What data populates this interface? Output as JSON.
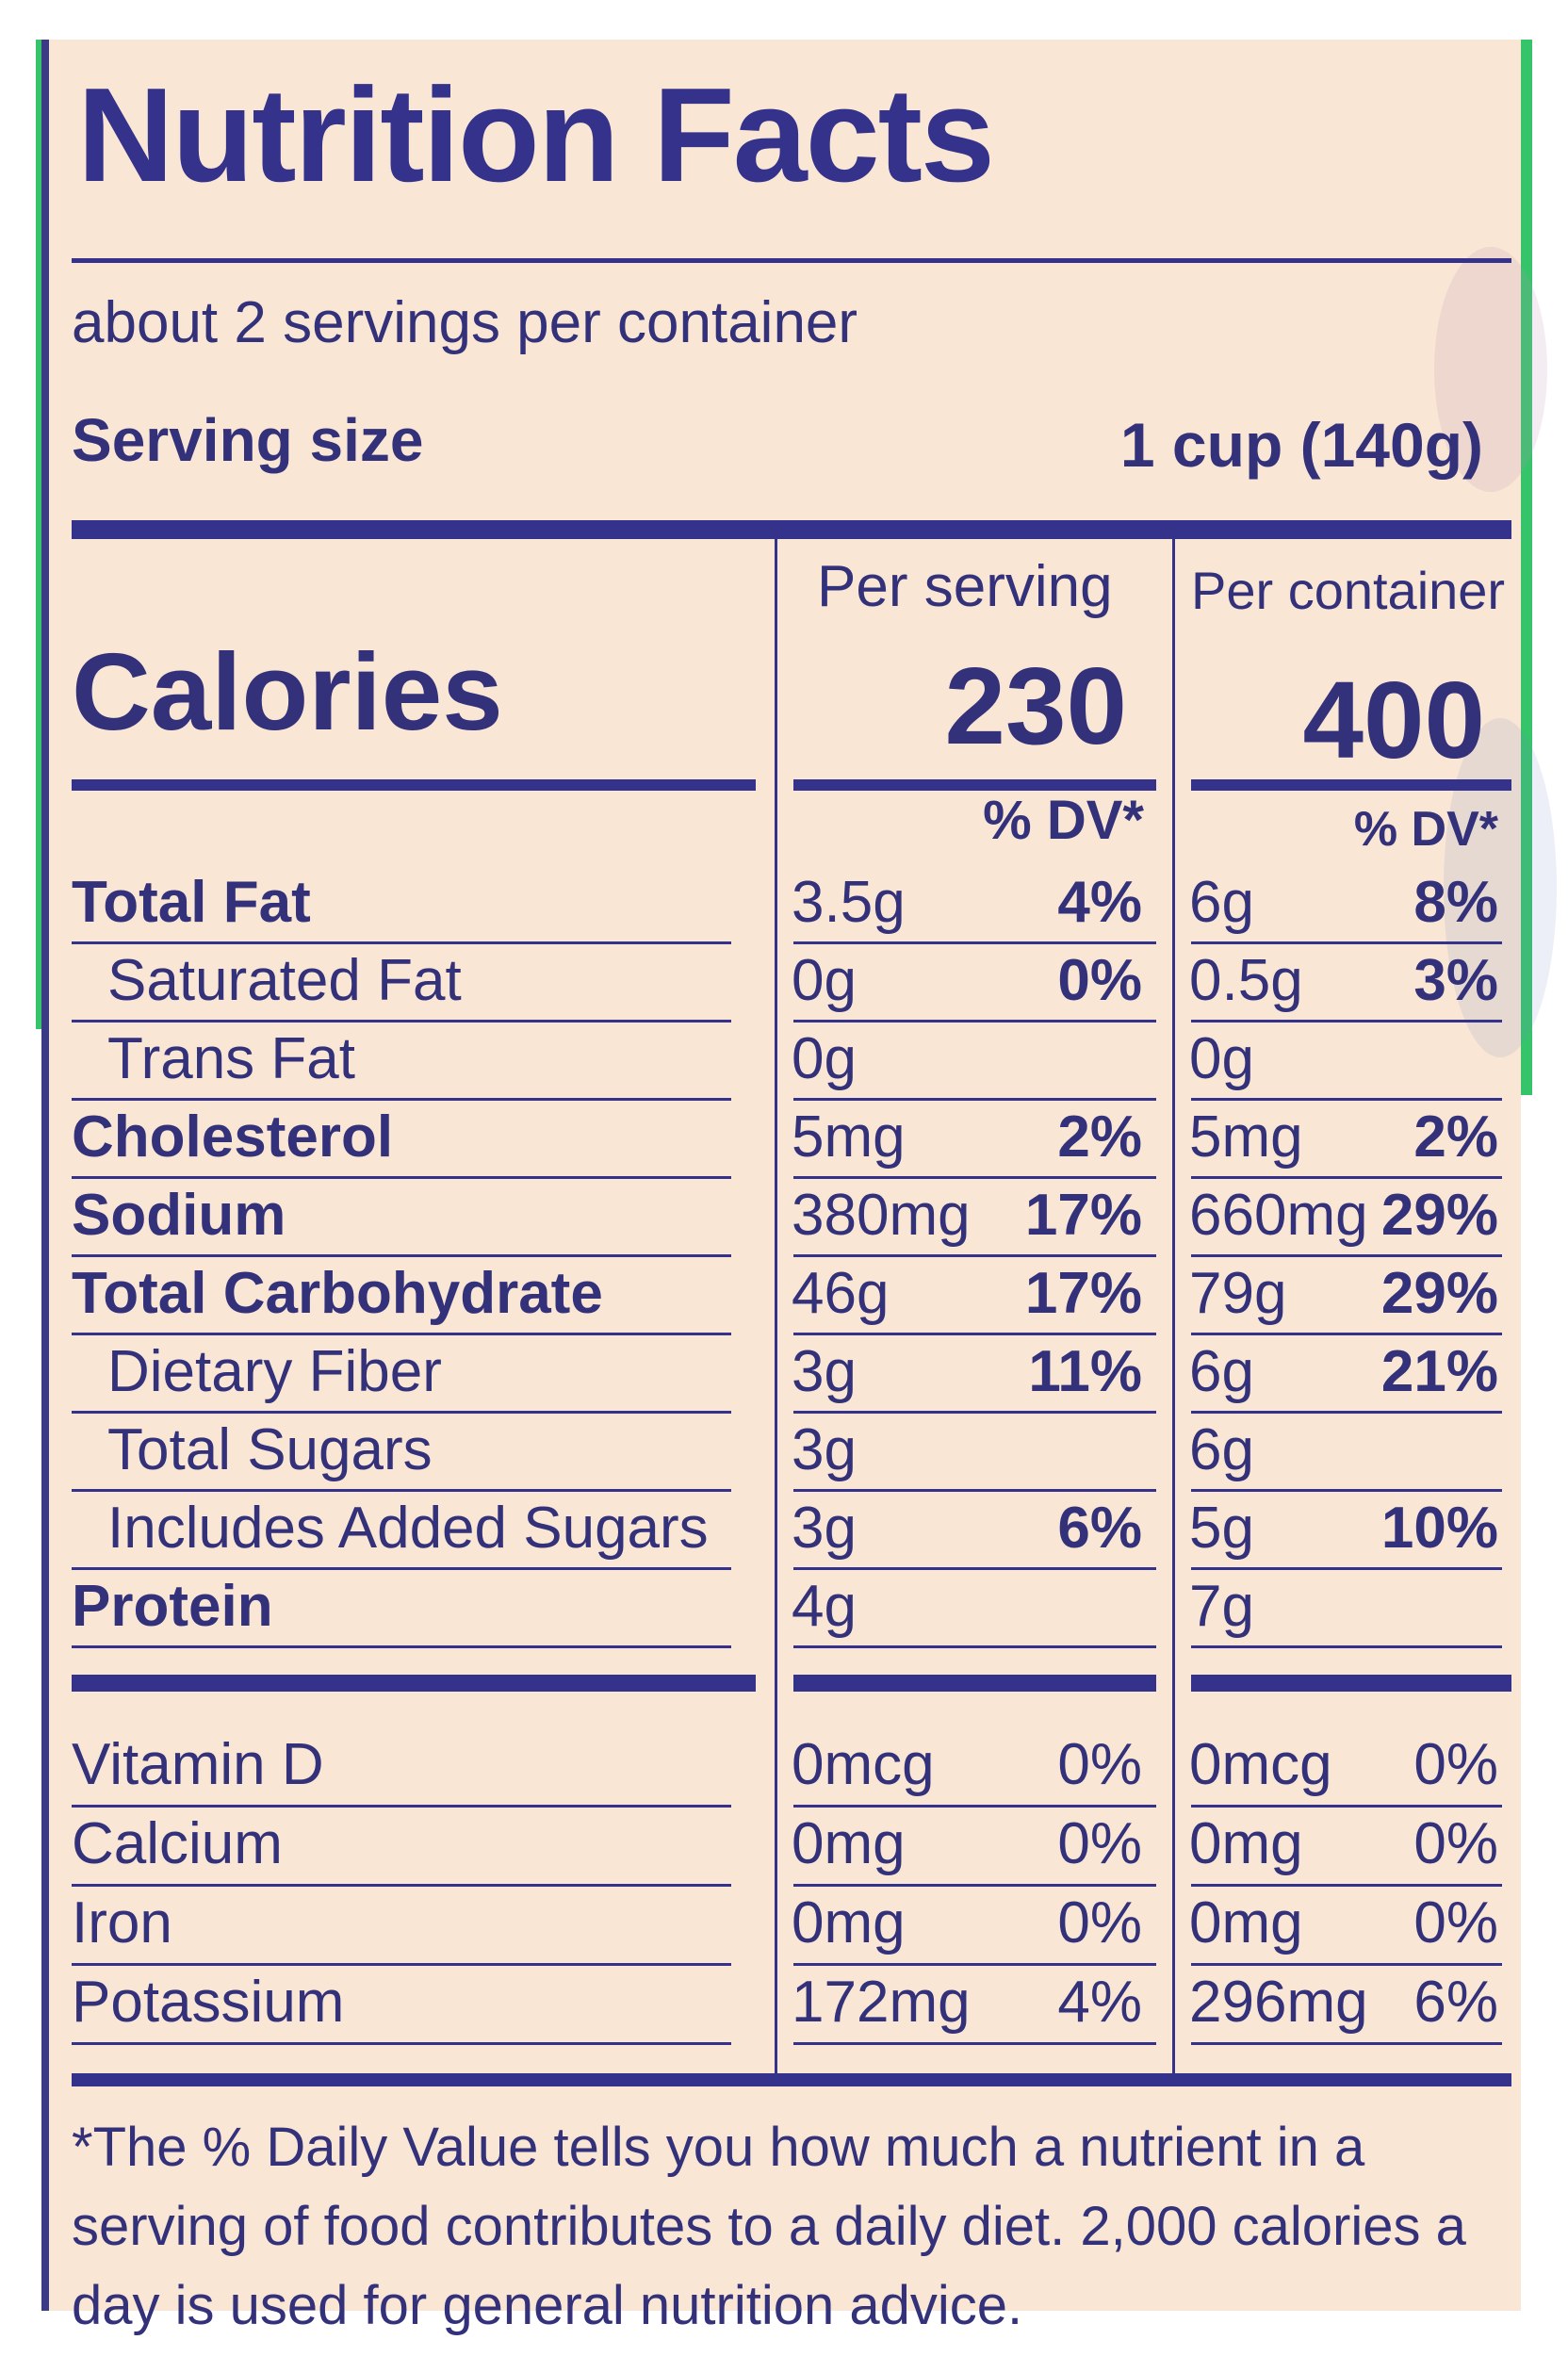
{
  "title": "Nutrition Facts",
  "servings_per_container": "about 2 servings per container",
  "serving_size": {
    "label": "Serving size",
    "value": "1 cup (140g)"
  },
  "columns": {
    "per_serving": "Per serving",
    "per_container": "Per container",
    "dv_header": "% DV*"
  },
  "calories": {
    "label": "Calories",
    "per_serving": "230",
    "per_container": "400"
  },
  "nutrients": [
    {
      "name": "Total Fat",
      "serving_amt": "3.5g",
      "serving_dv": "4%",
      "container_amt": "6g",
      "container_dv": "8%"
    },
    {
      "name": "Saturated Fat",
      "serving_amt": "0g",
      "serving_dv": "0%",
      "container_amt": "0.5g",
      "container_dv": "3%"
    },
    {
      "name": "Trans Fat",
      "serving_amt": "0g",
      "serving_dv": "",
      "container_amt": "0g",
      "container_dv": ""
    },
    {
      "name": "Cholesterol",
      "serving_amt": "5mg",
      "serving_dv": "2%",
      "container_amt": "5mg",
      "container_dv": "2%"
    },
    {
      "name": "Sodium",
      "serving_amt": "380mg",
      "serving_dv": "17%",
      "container_amt": "660mg",
      "container_dv": "29%"
    },
    {
      "name": "Total Carbohydrate",
      "serving_amt": "46g",
      "serving_dv": "17%",
      "container_amt": "79g",
      "container_dv": "29%"
    },
    {
      "name": "Dietary Fiber",
      "serving_amt": "3g",
      "serving_dv": "11%",
      "container_amt": "6g",
      "container_dv": "21%"
    },
    {
      "name": "Total Sugars",
      "serving_amt": "3g",
      "serving_dv": "",
      "container_amt": "6g",
      "container_dv": ""
    },
    {
      "name": "Includes Added Sugars",
      "serving_amt": "3g",
      "serving_dv": "6%",
      "container_amt": "5g",
      "container_dv": "10%"
    },
    {
      "name": "Protein",
      "serving_amt": "4g",
      "serving_dv": "",
      "container_amt": "7g",
      "container_dv": ""
    }
  ],
  "vitamins": [
    {
      "name": "Vitamin D",
      "serving_amt": "0mcg",
      "serving_dv": "0%",
      "container_amt": "0mcg",
      "container_dv": "0%"
    },
    {
      "name": "Calcium",
      "serving_amt": "0mg",
      "serving_dv": "0%",
      "container_amt": "0mg",
      "container_dv": "0%"
    },
    {
      "name": "Iron",
      "serving_amt": "0mg",
      "serving_dv": "0%",
      "container_amt": "0mg",
      "container_dv": "0%"
    },
    {
      "name": "Potassium",
      "serving_amt": "172mg",
      "serving_dv": "4%",
      "container_amt": "296mg",
      "container_dv": "6%"
    }
  ],
  "footnote": "*The % Daily Value tells you how much a nutrient in a serving of food contributes to a daily diet. 2,000 calories a day is used for general nutrition advice.",
  "colors": {
    "ink": "#34328a",
    "label_bg": "#f9e6d4",
    "green_edge": "#35c46a"
  }
}
